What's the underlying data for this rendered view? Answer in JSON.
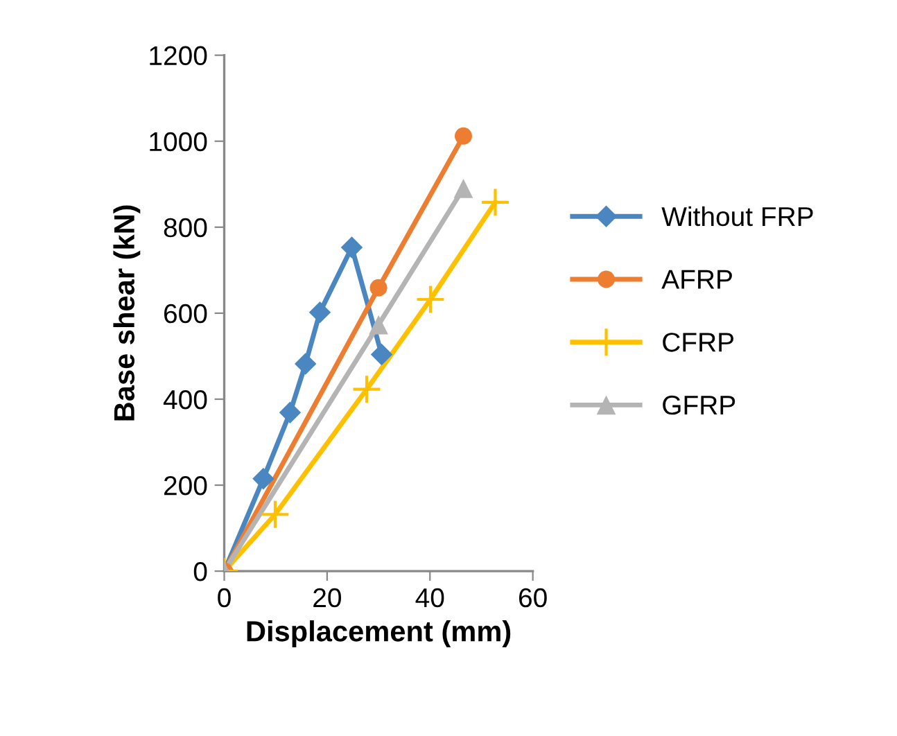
{
  "chart_data": {
    "type": "line",
    "xlabel": "Displacement (mm)",
    "ylabel": "Base shear (kN)",
    "xlim": [
      0,
      60
    ],
    "xticks": [
      0,
      20,
      40,
      60
    ],
    "ylim": [
      0,
      1200
    ],
    "yticks": [
      0,
      200,
      400,
      600,
      800,
      1000,
      1200
    ],
    "grid": false,
    "legend": "right",
    "line_style": "solid",
    "series": [
      {
        "name": "Without FRP",
        "color": "#4a86c0",
        "marker": "diamond",
        "x": [
          0,
          7.6,
          12.8,
          15.8,
          18.6,
          24.8,
          30.6
        ],
        "values": [
          0,
          215,
          369,
          482,
          602,
          753,
          504
        ]
      },
      {
        "name": "AFRP",
        "color": "#ed7d31",
        "marker": "circle",
        "x": [
          0,
          30.0,
          46.5
        ],
        "values": [
          0,
          659,
          1012
        ]
      },
      {
        "name": "CFRP",
        "color": "#ffc000",
        "marker": "cross",
        "x": [
          0,
          9.9,
          27.7,
          40.1,
          52.7
        ],
        "values": [
          0,
          132,
          423,
          632,
          858
        ]
      },
      {
        "name": "GFRP",
        "color": "#b4b4b4",
        "marker": "triangle",
        "x": [
          0,
          30.0,
          46.5
        ],
        "values": [
          0,
          573,
          890
        ]
      }
    ]
  }
}
